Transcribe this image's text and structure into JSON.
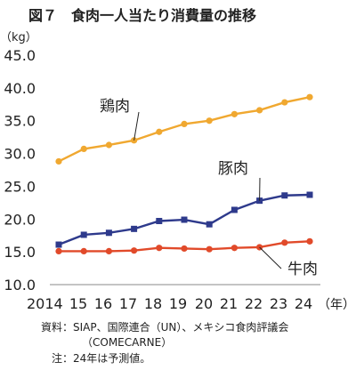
{
  "chart_data": {
    "type": "line",
    "title": "図７　食肉一人当たり消費量の推移",
    "ylabel": "（kg）",
    "xunit": "（年）",
    "ylim": [
      10.0,
      45.0
    ],
    "yticks": [
      "10.0",
      "15.0",
      "20.0",
      "25.0",
      "30.0",
      "35.0",
      "40.0",
      "45.0"
    ],
    "x_tick_labels": [
      "2014",
      "15",
      "16",
      "17",
      "18",
      "19",
      "20",
      "21",
      "22",
      "23",
      "24"
    ],
    "grid": false,
    "series": [
      {
        "name": "鶏肉",
        "color": "#f0a830",
        "marker": "circle",
        "values": [
          28.8,
          30.7,
          31.3,
          32.0,
          33.3,
          34.5,
          35.0,
          36.0,
          36.6,
          37.8,
          38.6
        ]
      },
      {
        "name": "豚肉",
        "color": "#2e3a8c",
        "marker": "square",
        "values": [
          16.1,
          17.6,
          17.9,
          18.5,
          19.7,
          19.9,
          19.2,
          21.4,
          22.8,
          23.6,
          23.7
        ]
      },
      {
        "name": "牛肉",
        "color": "#e14a2a",
        "marker": "circle",
        "values": [
          15.1,
          15.1,
          15.1,
          15.2,
          15.6,
          15.5,
          15.4,
          15.6,
          15.7,
          16.4,
          16.6
        ]
      }
    ],
    "source_lines": [
      "資料：SIAP、国際連合（UN）、メキシコ食肉評議会",
      "（COMECARNE）"
    ],
    "note": "注：24年は予測値。"
  }
}
